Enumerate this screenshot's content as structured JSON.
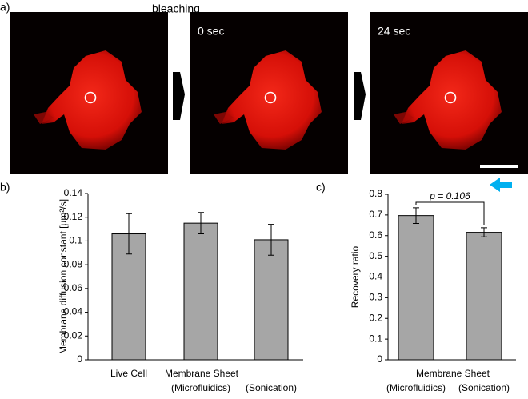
{
  "figure": {
    "panel_a": "a)",
    "panel_b": "b)",
    "panel_c": "c)",
    "step_1": "bleaching",
    "step_2": "0 sec",
    "step_3": "24 sec"
  },
  "chart_data": [
    {
      "type": "bar",
      "ylabel": "Membrane diffusion constant [μm²/s]",
      "categories": [
        "Live Cell",
        "(Microfluidics)",
        "(Sonication)"
      ],
      "group_label": "Membrane Sheet",
      "values": [
        0.106,
        0.115,
        0.101
      ],
      "errors": [
        0.017,
        0.009,
        0.013
      ],
      "color": "#a6a6a6",
      "ylim": [
        0,
        0.14
      ],
      "yticks": [
        0,
        0.02,
        0.04,
        0.06,
        0.08,
        0.1,
        0.12,
        0.14
      ]
    },
    {
      "type": "bar",
      "ylabel": "Recovery ratio",
      "categories": [
        "(Microfluidics)",
        "(Sonication)"
      ],
      "group_label": "Membrane Sheet",
      "values": [
        0.697,
        0.616
      ],
      "errors": [
        0.038,
        0.022
      ],
      "color": "#a6a6a6",
      "annotation": "p = 0.106",
      "ylim": [
        0,
        0.8
      ],
      "yticks": [
        0,
        0.1,
        0.2,
        0.3,
        0.4,
        0.5,
        0.6,
        0.7,
        0.8
      ]
    }
  ]
}
